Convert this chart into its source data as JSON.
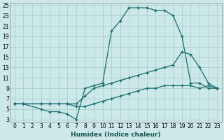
{
  "xlabel": "Humidex (Indice chaleur)",
  "bg_color": "#cce8e8",
  "grid_color": "#aacfcf",
  "line_color": "#1a6e6e",
  "xlim": [
    -0.5,
    23.5
  ],
  "ylim": [
    2.5,
    25.5
  ],
  "xticks": [
    0,
    1,
    2,
    3,
    4,
    5,
    6,
    7,
    8,
    9,
    10,
    11,
    12,
    13,
    14,
    15,
    16,
    17,
    18,
    19,
    20,
    21,
    22,
    23
  ],
  "yticks": [
    3,
    5,
    7,
    9,
    11,
    13,
    15,
    17,
    19,
    21,
    23,
    25
  ],
  "line1_x": [
    0,
    1,
    3,
    4,
    5,
    6,
    7,
    8,
    9,
    10,
    11,
    12,
    13,
    14,
    15,
    16,
    17,
    18,
    19,
    20,
    21,
    22,
    23
  ],
  "line1_y": [
    6,
    6,
    5,
    4.5,
    4.5,
    4,
    3,
    9,
    9.5,
    10,
    20,
    22,
    24.5,
    24.5,
    24.5,
    24,
    24,
    23,
    19,
    10,
    10,
    9,
    9
  ],
  "line2_x": [
    0,
    1,
    3,
    4,
    5,
    6,
    7,
    8,
    9,
    10,
    11,
    12,
    13,
    14,
    15,
    16,
    17,
    18,
    19,
    20,
    21,
    22,
    23
  ],
  "line2_y": [
    6,
    6,
    6,
    6,
    6,
    6,
    6,
    7.5,
    9,
    9.5,
    10,
    10.5,
    11,
    11.5,
    12,
    12.5,
    13,
    13.5,
    16,
    15.5,
    13,
    10,
    9
  ],
  "line3_x": [
    0,
    1,
    3,
    4,
    5,
    6,
    7,
    8,
    9,
    10,
    11,
    12,
    13,
    14,
    15,
    16,
    17,
    18,
    19,
    20,
    21,
    22,
    23
  ],
  "line3_y": [
    6,
    6,
    6,
    6,
    6,
    6,
    5.5,
    5.5,
    6,
    6.5,
    7,
    7.5,
    8,
    8.5,
    9,
    9,
    9.5,
    9.5,
    9.5,
    9.5,
    9,
    9.5,
    9
  ]
}
